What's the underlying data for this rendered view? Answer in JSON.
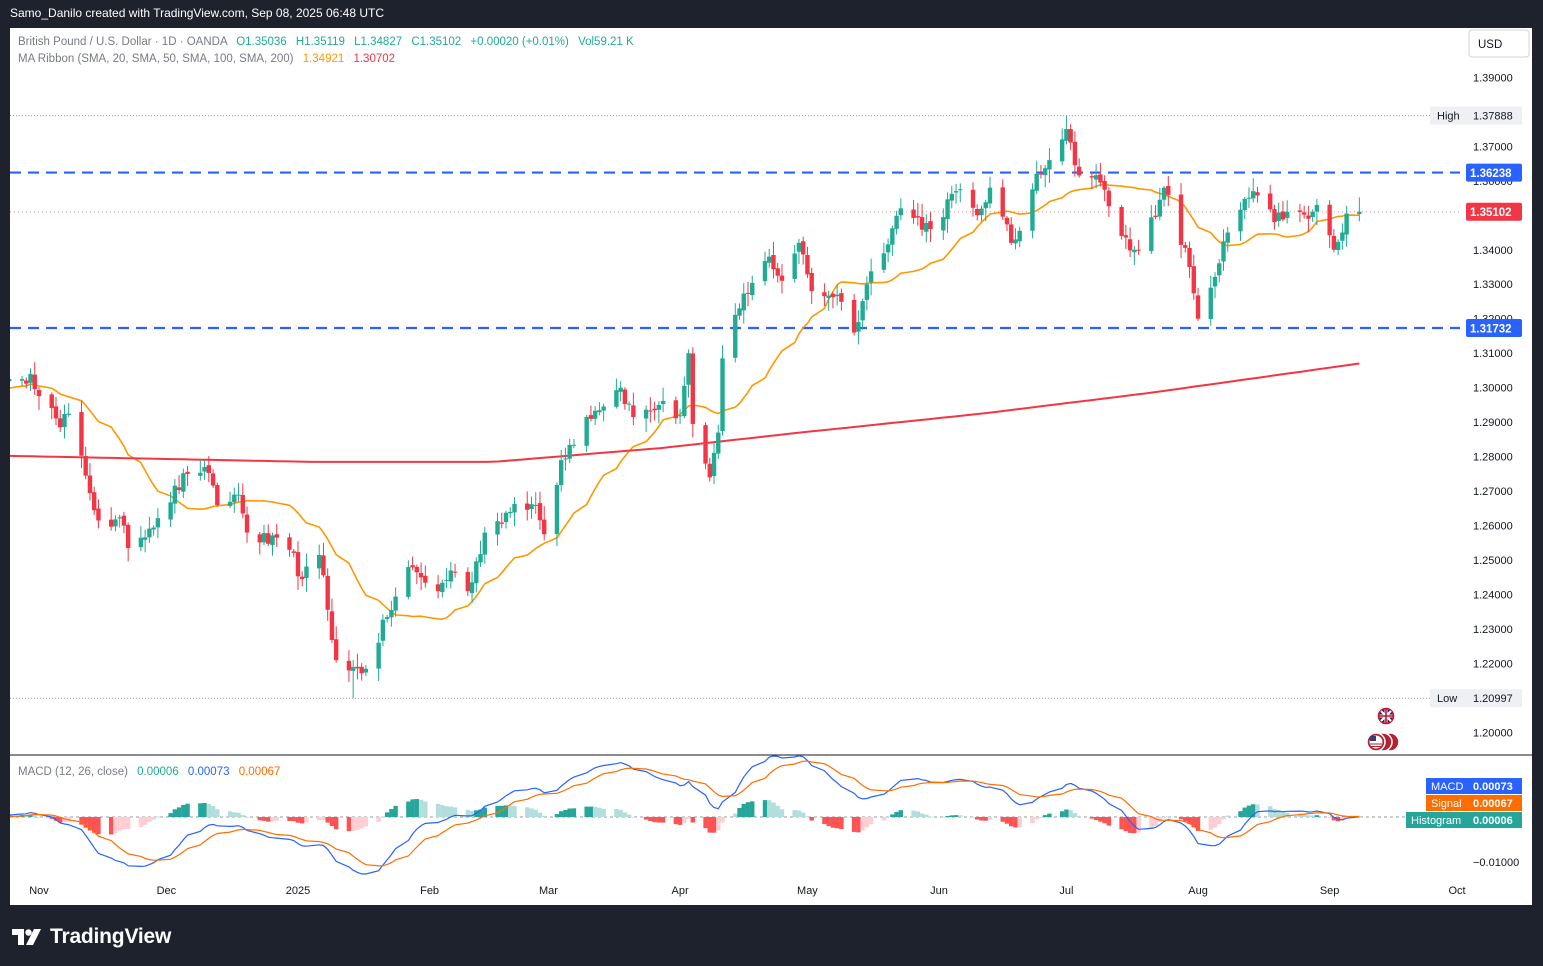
{
  "header": {
    "attribution": "Samo_Danilo created with TradingView.com, Sep 08, 2025 06:48 UTC"
  },
  "legend": {
    "symbol": "British Pound / U.S. Dollar · 1D · OANDA",
    "open": "O1.35036",
    "high": "H1.35119",
    "low": "L1.34827",
    "close": "C1.35102",
    "change": "+0.00020 (+0.01%)",
    "volume": "Vol59.21 K",
    "ma_label": "MA Ribbon (SMA, 20, SMA, 50, SMA, 100, SMA, 200)",
    "ma_value1": "1.34921",
    "ma_value2": "1.30702",
    "macd_label": "MACD (12, 26, close)",
    "macd_hist": "0.00006",
    "macd_macd": "0.00073",
    "macd_signal": "0.00067"
  },
  "currency_button": "USD",
  "brand": "TradingView",
  "colors": {
    "up": "#22ab94",
    "down": "#f23645",
    "sma20": "#ff9800",
    "sma200": "#f23645",
    "level": "#2962ff",
    "macd": "#2962ff",
    "signal": "#ff6d00",
    "hist_up_strong": "#26a69a",
    "hist_up_weak": "#b2dfdb",
    "hist_down_strong": "#ff5252",
    "hist_down_weak": "#ffcdd2"
  },
  "chart_data": {
    "type": "candlestick",
    "title": "British Pound / U.S. Dollar · 1D · OANDA",
    "ylim": [
      1.1935,
      1.3985
    ],
    "y_ticks": [
      "1.39000",
      "1.38000",
      "1.37000",
      "1.36000",
      "1.35000",
      "1.34000",
      "1.33000",
      "1.32000",
      "1.31000",
      "1.30000",
      "1.29000",
      "1.28000",
      "1.27000",
      "1.26000",
      "1.25000",
      "1.24000",
      "1.23000",
      "1.22000",
      "1.21000",
      "1.20000"
    ],
    "x_labels": [
      "Nov",
      "Dec",
      "2025",
      "Feb",
      "Mar",
      "Apr",
      "May",
      "Jun",
      "Jul",
      "Aug",
      "Sep",
      "Oct"
    ],
    "anchors": [
      {
        "d": "2024-10-22",
        "c": 1.2985
      },
      {
        "d": "2024-10-28",
        "c": 1.3025
      },
      {
        "d": "2024-10-30",
        "c": 1.304
      },
      {
        "d": "2024-11-06",
        "c": 1.2885
      },
      {
        "d": "2024-11-08",
        "c": 1.2925
      },
      {
        "d": "2024-11-12",
        "c": 1.2745
      },
      {
        "d": "2024-11-15",
        "c": 1.2615
      },
      {
        "d": "2024-11-21",
        "c": 1.26
      },
      {
        "d": "2024-11-22",
        "c": 1.2535
      },
      {
        "d": "2024-11-25",
        "c": 1.2565
      },
      {
        "d": "2024-12-06",
        "c": 1.275
      },
      {
        "d": "2024-12-10",
        "c": 1.277
      },
      {
        "d": "2024-12-13",
        "c": 1.266
      },
      {
        "d": "2024-12-18",
        "c": 1.269
      },
      {
        "d": "2024-12-20",
        "c": 1.258
      },
      {
        "d": "2024-12-30",
        "c": 1.253
      },
      {
        "d": "2025-01-02",
        "c": 1.2445
      },
      {
        "d": "2025-01-06",
        "c": 1.2515
      },
      {
        "d": "2025-01-10",
        "c": 1.221
      },
      {
        "d": "2025-01-13",
        "c": 1.218
      },
      {
        "d": "2025-01-17",
        "c": 1.2185
      },
      {
        "d": "2025-01-22",
        "c": 1.2335
      },
      {
        "d": "2025-01-27",
        "c": 1.248
      },
      {
        "d": "2025-02-03",
        "c": 1.241
      },
      {
        "d": "2025-02-06",
        "c": 1.247
      },
      {
        "d": "2025-02-10",
        "c": 1.241
      },
      {
        "d": "2025-02-14",
        "c": 1.258
      },
      {
        "d": "2025-02-20",
        "c": 1.264
      },
      {
        "d": "2025-02-26",
        "c": 1.266
      },
      {
        "d": "2025-02-28",
        "c": 1.2575
      },
      {
        "d": "2025-03-04",
        "c": 1.279
      },
      {
        "d": "2025-03-10",
        "c": 1.2915
      },
      {
        "d": "2025-03-18",
        "c": 1.3
      },
      {
        "d": "2025-03-21",
        "c": 1.2915
      },
      {
        "d": "2025-03-27",
        "c": 1.295
      },
      {
        "d": "2025-04-01",
        "c": 1.292
      },
      {
        "d": "2025-04-03",
        "c": 1.31
      },
      {
        "d": "2025-04-04",
        "c": 1.2895
      },
      {
        "d": "2025-04-07",
        "c": 1.278
      },
      {
        "d": "2025-04-08",
        "c": 1.274
      },
      {
        "d": "2025-04-10",
        "c": 1.287
      },
      {
        "d": "2025-04-11",
        "c": 1.3085
      },
      {
        "d": "2025-04-15",
        "c": 1.323
      },
      {
        "d": "2025-04-22",
        "c": 1.338
      },
      {
        "d": "2025-04-25",
        "c": 1.331
      },
      {
        "d": "2025-04-29",
        "c": 1.342
      },
      {
        "d": "2025-05-02",
        "c": 1.328
      },
      {
        "d": "2025-05-08",
        "c": 1.327
      },
      {
        "d": "2025-05-12",
        "c": 1.316
      },
      {
        "d": "2025-05-15",
        "c": 1.33
      },
      {
        "d": "2025-05-23",
        "c": 1.352
      },
      {
        "d": "2025-05-30",
        "c": 1.346
      },
      {
        "d": "2025-06-05",
        "c": 1.357
      },
      {
        "d": "2025-06-10",
        "c": 1.35
      },
      {
        "d": "2025-06-13",
        "c": 1.358
      },
      {
        "d": "2025-06-18",
        "c": 1.342
      },
      {
        "d": "2025-06-20",
        "c": 1.3455
      },
      {
        "d": "2025-06-24",
        "c": 1.362
      },
      {
        "d": "2025-06-30",
        "c": 1.372
      },
      {
        "d": "2025-07-01",
        "c": 1.375
      },
      {
        "d": "2025-07-03",
        "c": 1.3645
      },
      {
        "d": "2025-07-09",
        "c": 1.3595
      },
      {
        "d": "2025-07-14",
        "c": 1.344
      },
      {
        "d": "2025-07-17",
        "c": 1.34
      },
      {
        "d": "2025-07-22",
        "c": 1.3495
      },
      {
        "d": "2025-07-24",
        "c": 1.358
      },
      {
        "d": "2025-07-30",
        "c": 1.335
      },
      {
        "d": "2025-08-01",
        "c": 1.32
      },
      {
        "d": "2025-08-04",
        "c": 1.329
      },
      {
        "d": "2025-08-08",
        "c": 1.345
      },
      {
        "d": "2025-08-14",
        "c": 1.357
      },
      {
        "d": "2025-08-19",
        "c": 1.348
      },
      {
        "d": "2025-08-22",
        "c": 1.351
      },
      {
        "d": "2025-08-27",
        "c": 1.349
      },
      {
        "d": "2025-08-29",
        "c": 1.353
      },
      {
        "d": "2025-09-02",
        "c": 1.34
      },
      {
        "d": "2025-09-04",
        "c": 1.345
      },
      {
        "d": "2025-09-05",
        "c": 1.3505
      },
      {
        "d": "2025-09-08",
        "c": 1.35102
      }
    ],
    "last_candle": {
      "o": 1.35036,
      "h": 1.35119,
      "l": 1.34827,
      "c": 1.35102
    },
    "period_high": 1.37888,
    "period_low": 1.20997,
    "series": [
      {
        "name": "MA Ribbon SMA 20",
        "latest": 1.34921
      },
      {
        "name": "MA Ribbon SMA 200",
        "latest": 1.30702
      }
    ],
    "price_labels": {
      "high": {
        "label": "High",
        "value": "1.37888"
      },
      "low": {
        "label": "Low",
        "value": "1.20997"
      },
      "upper_level": {
        "value": "1.36238",
        "y": 1.36238
      },
      "lower_level": {
        "value": "1.31732",
        "y": 1.31732
      },
      "last_price": {
        "value": "1.35102",
        "y": 1.35102
      }
    },
    "macd_panel": {
      "label": "MACD (12, 26, close)",
      "params": [
        12,
        26
      ],
      "ylim": [
        -0.0135,
        0.0135
      ],
      "tick": "−0.01000",
      "tags": [
        {
          "name": "MACD",
          "value": "0.00073"
        },
        {
          "name": "Signal",
          "value": "0.00067"
        },
        {
          "name": "Histogram",
          "value": "0.00006"
        }
      ]
    }
  }
}
